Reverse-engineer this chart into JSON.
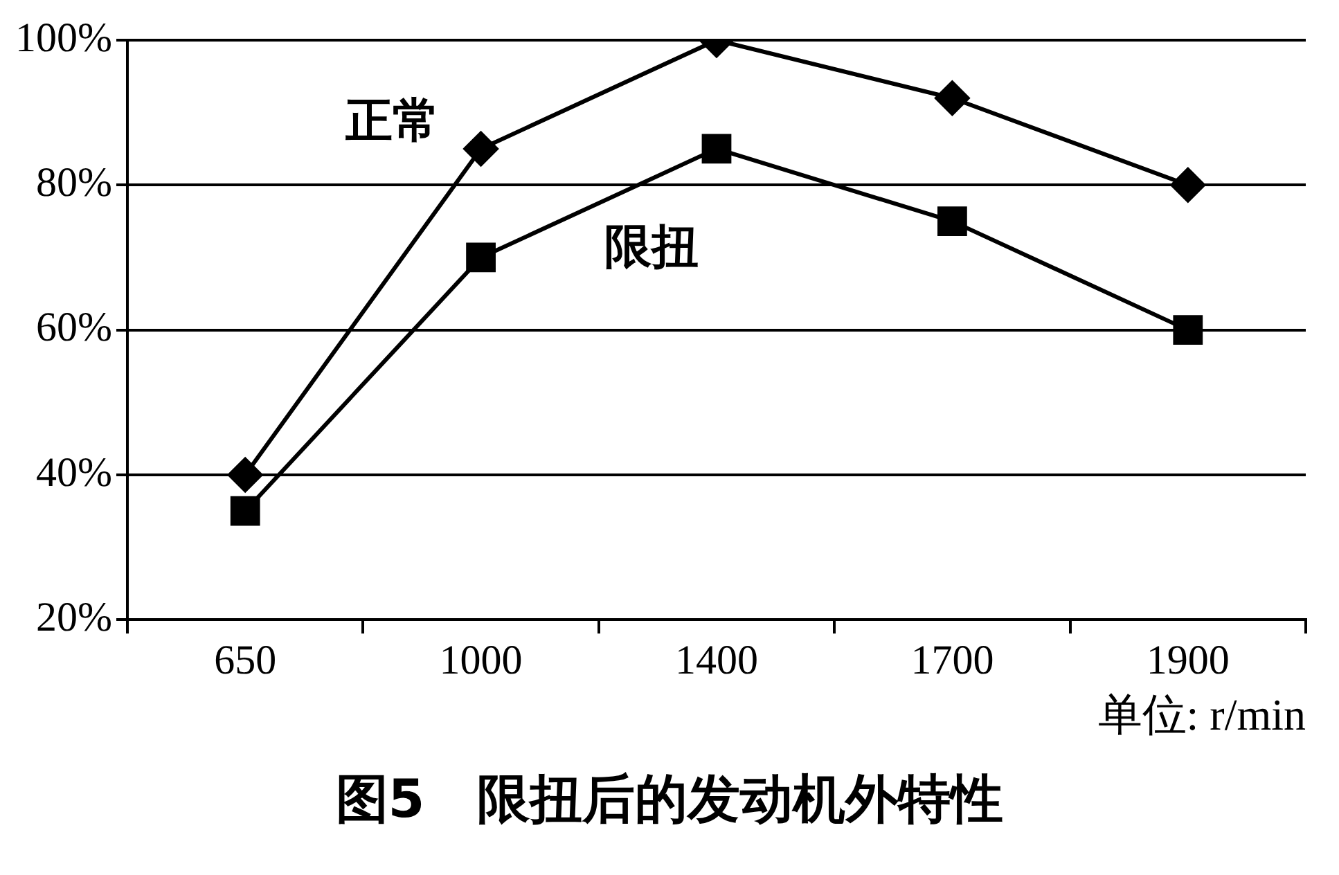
{
  "chart_data": {
    "type": "line",
    "title": "图5　限扭后的发动机外特性",
    "xlabel": "单位: r/min",
    "categories": [
      "650",
      "1000",
      "1400",
      "1700",
      "1900"
    ],
    "series": [
      {
        "name": "正常",
        "color": "#000000",
        "marker": "diamond",
        "values": [
          40,
          85,
          100,
          92,
          80
        ]
      },
      {
        "name": "限扭",
        "color": "#000000",
        "marker": "square",
        "values": [
          35,
          70,
          85,
          75,
          60
        ]
      }
    ],
    "ylim": [
      20,
      100
    ],
    "yticks": [
      {
        "value": 20,
        "label": "20%"
      },
      {
        "value": 40,
        "label": "40%"
      },
      {
        "value": 60,
        "label": "60%"
      },
      {
        "value": 80,
        "label": "80%"
      },
      {
        "value": 100,
        "label": "100%"
      }
    ],
    "grid": "y",
    "legend": false,
    "line_style": "solid"
  }
}
